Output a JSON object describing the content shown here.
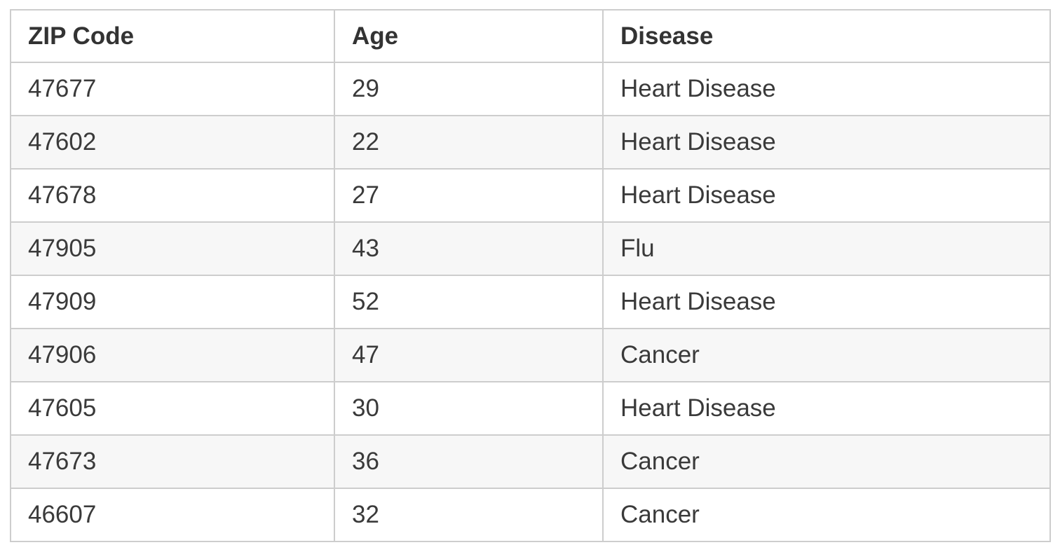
{
  "chart_data": {
    "type": "table",
    "columns": [
      "ZIP Code",
      "Age",
      "Disease"
    ],
    "rows": [
      [
        "47677",
        "29",
        "Heart Disease"
      ],
      [
        "47602",
        "22",
        "Heart Disease"
      ],
      [
        "47678",
        "27",
        "Heart Disease"
      ],
      [
        "47905",
        "43",
        "Flu"
      ],
      [
        "47909",
        "52",
        "Heart Disease"
      ],
      [
        "47906",
        "47",
        "Cancer"
      ],
      [
        "47605",
        "30",
        "Heart Disease"
      ],
      [
        "47673",
        "36",
        "Cancer"
      ],
      [
        "46607",
        "32",
        "Cancer"
      ]
    ],
    "title": "",
    "layout": {
      "zebra_striping": true,
      "striped_rows": "even",
      "grid": true
    }
  },
  "colors": {
    "border": "#cdcdcd",
    "stripe": "#f7f7f7",
    "row_bg": "#ffffff",
    "text": "#3a3a3a",
    "header_text": "#333333",
    "page_bg": "#ffffff"
  }
}
